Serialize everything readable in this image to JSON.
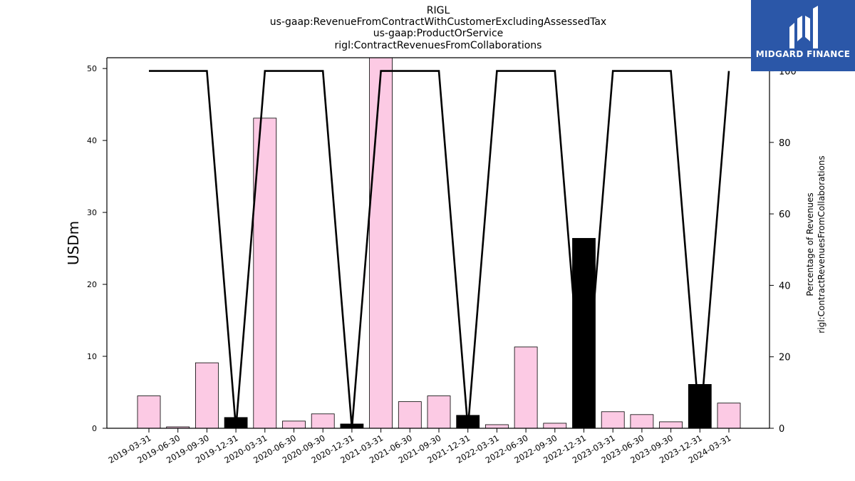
{
  "chart_data": {
    "type": "bar",
    "title": [
      "RIGL",
      "us-gaap:RevenueFromContractWithCustomerExcludingAssessedTax",
      "us-gaap:ProductOrService",
      "rigl:ContractRevenuesFromCollaborations"
    ],
    "ylabel": "USDm",
    "y2label": [
      "Percentage of Revenues",
      "rigl:ContractRevenuesFromCollaborations"
    ],
    "ylim": [
      0,
      51.5
    ],
    "y2lim": [
      0,
      103.7
    ],
    "yticks": [
      0,
      10,
      20,
      30,
      40,
      50
    ],
    "y2ticks": [
      0,
      20,
      40,
      60,
      80,
      100
    ],
    "categories": [
      "2019-03-31",
      "2019-06-30",
      "2019-09-30",
      "2019-12-31",
      "2020-03-31",
      "2020-06-30",
      "2020-09-30",
      "2020-12-31",
      "2021-03-31",
      "2021-06-30",
      "2021-09-30",
      "2021-12-31",
      "2022-03-31",
      "2022-06-30",
      "2022-09-30",
      "2022-12-31",
      "2023-03-31",
      "2023-06-30",
      "2023-09-30",
      "2023-12-31",
      "2024-03-31"
    ],
    "series": [
      {
        "kind": "bar",
        "values": [
          4.5,
          0.2,
          9.1,
          1.5,
          43.1,
          1.0,
          2.0,
          0.6,
          52.0,
          3.7,
          4.5,
          1.8,
          0.5,
          11.3,
          0.7,
          26.4,
          2.3,
          1.9,
          0.9,
          6.1,
          3.5
        ],
        "colors": [
          "#fccae4",
          "#fccae4",
          "#fccae4",
          "#000000",
          "#fccae4",
          "#fccae4",
          "#fccae4",
          "#000000",
          "#fccae4",
          "#fccae4",
          "#fccae4",
          "#000000",
          "#fccae4",
          "#fccae4",
          "#fccae4",
          "#000000",
          "#fccae4",
          "#fccae4",
          "#fccae4",
          "#000000",
          "#fccae4"
        ]
      },
      {
        "kind": "line",
        "axis": "right",
        "color": "#000000",
        "values": [
          100,
          100,
          100,
          0,
          100,
          100,
          100,
          0,
          100,
          100,
          100,
          0,
          100,
          100,
          100,
          0,
          100,
          100,
          100,
          0,
          100
        ]
      }
    ],
    "grid": false,
    "legend": "none"
  },
  "logo": {
    "text": "MIDGARD FINANCE",
    "background": "#2b57a8"
  }
}
